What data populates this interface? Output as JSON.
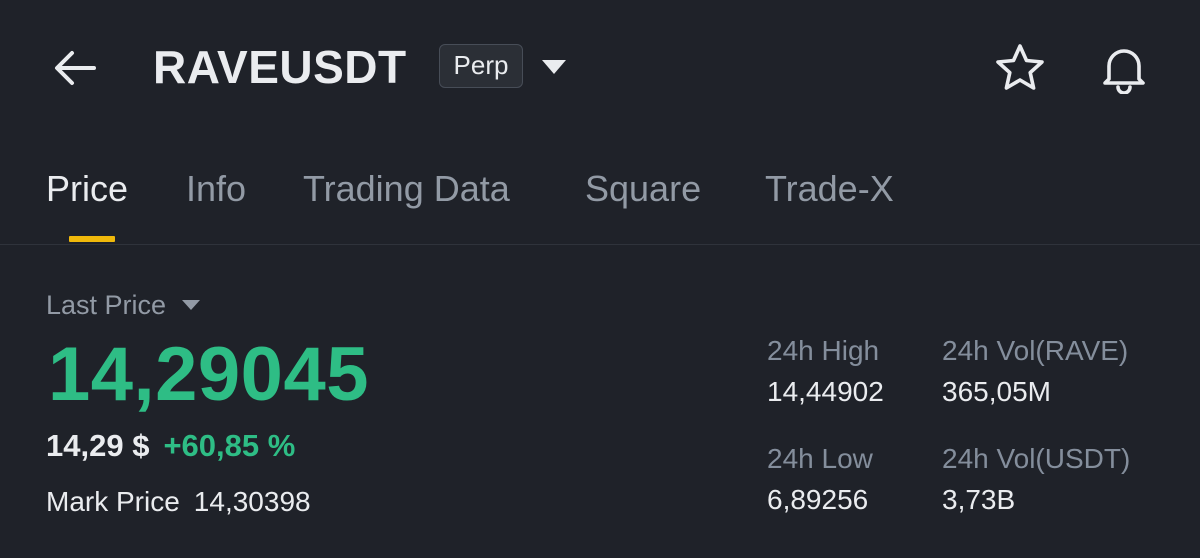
{
  "header": {
    "symbol": "RAVEUSDT",
    "badge": "Perp",
    "icons": {
      "back": "back-arrow-icon",
      "dropdown": "caret-down-icon",
      "favorite": "star-icon",
      "alert": "bell-icon"
    }
  },
  "tabs": [
    {
      "label": "Price",
      "active": true
    },
    {
      "label": "Info",
      "active": false
    },
    {
      "label": "Trading Data",
      "active": false
    },
    {
      "label": "Square",
      "active": false
    },
    {
      "label": "Trade-X",
      "active": false
    }
  ],
  "price": {
    "label": "Last Price",
    "value": "14,29045",
    "usd": "14,29 $",
    "change": "+60,85 %",
    "mark_label": "Mark Price",
    "mark_value": "14,30398"
  },
  "stats": {
    "high_label": "24h High",
    "high_value": "14,44902",
    "low_label": "24h Low",
    "low_value": "6,89256",
    "vol_base_label": "24h Vol(RAVE)",
    "vol_base_value": "365,05M",
    "vol_quote_label": "24h Vol(USDT)",
    "vol_quote_value": "3,73B"
  },
  "colors": {
    "background": "#1f2229",
    "positive": "#2ebd85",
    "accent": "#f0b90b",
    "text_primary": "#eaecef",
    "text_secondary": "#929aa5"
  }
}
